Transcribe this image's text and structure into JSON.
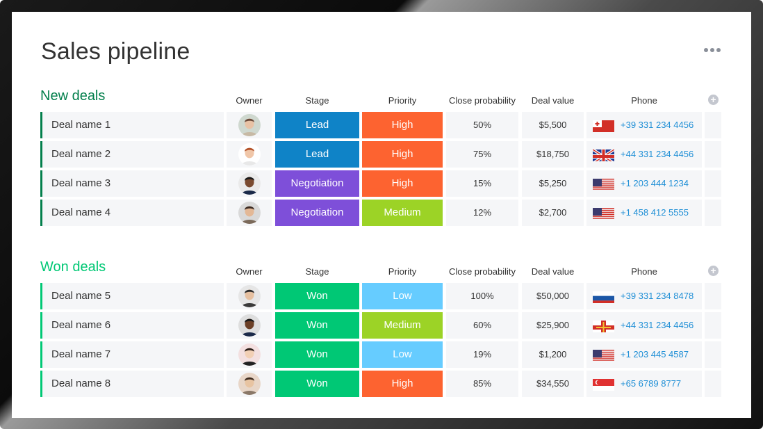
{
  "page": {
    "title": "Sales pipeline",
    "more_icon": "more-horizontal-icon"
  },
  "columns": {
    "owner": "Owner",
    "stage": "Stage",
    "priority": "Priority",
    "close_probability": "Close probability",
    "deal_value": "Deal value",
    "phone": "Phone"
  },
  "colors": {
    "new_deals_accent": "#037f4c",
    "won_deals_accent": "#00c875",
    "lead": "#0f83c7",
    "negotiation": "#7e4fd9",
    "won": "#00c875",
    "high": "#fd6330",
    "medium": "#9cd326",
    "low": "#66ccff",
    "phone_text": "#1f8fd6"
  },
  "groups": [
    {
      "title": "New deals",
      "accent": "#037f4c",
      "rows": [
        {
          "name": "Deal name 1",
          "stage": "Lead",
          "priority": "High",
          "probability": "50%",
          "value": "$5,500",
          "phone": "+39 331 234 4456",
          "flag": "tonga-flag"
        },
        {
          "name": "Deal name 2",
          "stage": "Lead",
          "priority": "High",
          "probability": "75%",
          "value": "$18,750",
          "phone": "+44 331 234 4456",
          "flag": "uk-flag"
        },
        {
          "name": "Deal name 3",
          "stage": "Negotiation",
          "priority": "High",
          "probability": "15%",
          "value": "$5,250",
          "phone": "+1 203 444 1234",
          "flag": "us-flag"
        },
        {
          "name": "Deal name 4",
          "stage": "Negotiation",
          "priority": "Medium",
          "probability": "12%",
          "value": "$2,700",
          "phone": "+1 458 412 5555",
          "flag": "us-flag"
        }
      ]
    },
    {
      "title": "Won deals",
      "accent": "#00c875",
      "rows": [
        {
          "name": "Deal name 5",
          "stage": "Won",
          "priority": "Low",
          "probability": "100%",
          "value": "$50,000",
          "phone": "+39 331 234 8478",
          "flag": "russia-flag"
        },
        {
          "name": "Deal name 6",
          "stage": "Won",
          "priority": "Medium",
          "probability": "60%",
          "value": "$25,900",
          "phone": "+44 331 234 4456",
          "flag": "guernsey-flag"
        },
        {
          "name": "Deal name 7",
          "stage": "Won",
          "priority": "Low",
          "probability": "19%",
          "value": "$1,200",
          "phone": "+1 203 445 4587",
          "flag": "us-flag"
        },
        {
          "name": "Deal name 8",
          "stage": "Won",
          "priority": "High",
          "probability": "85%",
          "value": "$34,550",
          "phone": "+65 6789 8777",
          "flag": "singapore-flag"
        }
      ]
    }
  ]
}
